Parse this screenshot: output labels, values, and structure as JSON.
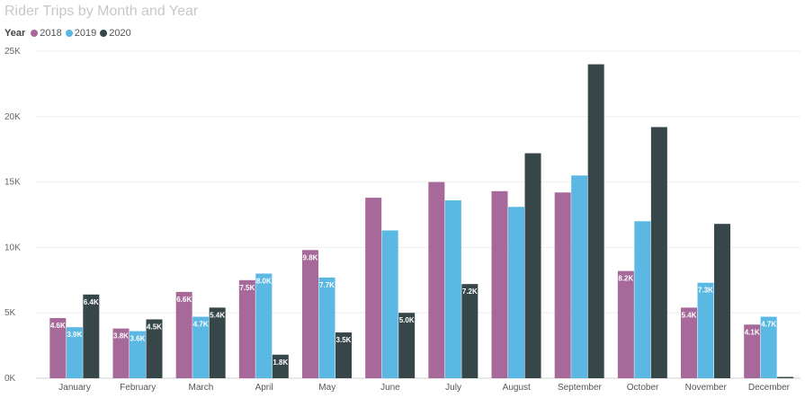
{
  "chart_data": {
    "type": "bar",
    "title": "Rider Trips by Month and Year",
    "legend_title": "Year",
    "legend_position": "top-left",
    "grid": true,
    "categories": [
      "January",
      "February",
      "March",
      "April",
      "May",
      "June",
      "July",
      "August",
      "September",
      "October",
      "November",
      "December"
    ],
    "yticks": [
      "0K",
      "5K",
      "10K",
      "15K",
      "20K",
      "25K"
    ],
    "ylim": [
      0,
      25000
    ],
    "series": [
      {
        "name": "2018",
        "color": "#a66999",
        "values": [
          4600,
          3800,
          6600,
          7500,
          9800,
          13800,
          15000,
          14300,
          14200,
          8200,
          5400,
          4100
        ],
        "labels": [
          "4.6K",
          "3.8K",
          "6.6K",
          "7.5K",
          "9.8K",
          "",
          "",
          "",
          "",
          "8.2K",
          "5.4K",
          "4.1K"
        ]
      },
      {
        "name": "2019",
        "color": "#5ab8e3",
        "values": [
          3900,
          3600,
          4700,
          8000,
          7700,
          11300,
          13600,
          13100,
          15500,
          12000,
          7300,
          4700
        ],
        "labels": [
          "3.9K",
          "3.6K",
          "4.7K",
          "8.0K",
          "7.7K",
          "",
          "",
          "",
          "",
          "",
          "7.3K",
          "4.7K"
        ]
      },
      {
        "name": "2020",
        "color": "#374649",
        "values": [
          6400,
          4500,
          5400,
          1800,
          3500,
          5000,
          7200,
          17200,
          24000,
          19200,
          11800,
          100
        ],
        "labels": [
          "6.4K",
          "4.5K",
          "5.4K",
          "1.8K",
          "3.5K",
          "5.0K",
          "7.2K",
          "",
          "",
          "",
          "",
          ""
        ]
      }
    ]
  }
}
